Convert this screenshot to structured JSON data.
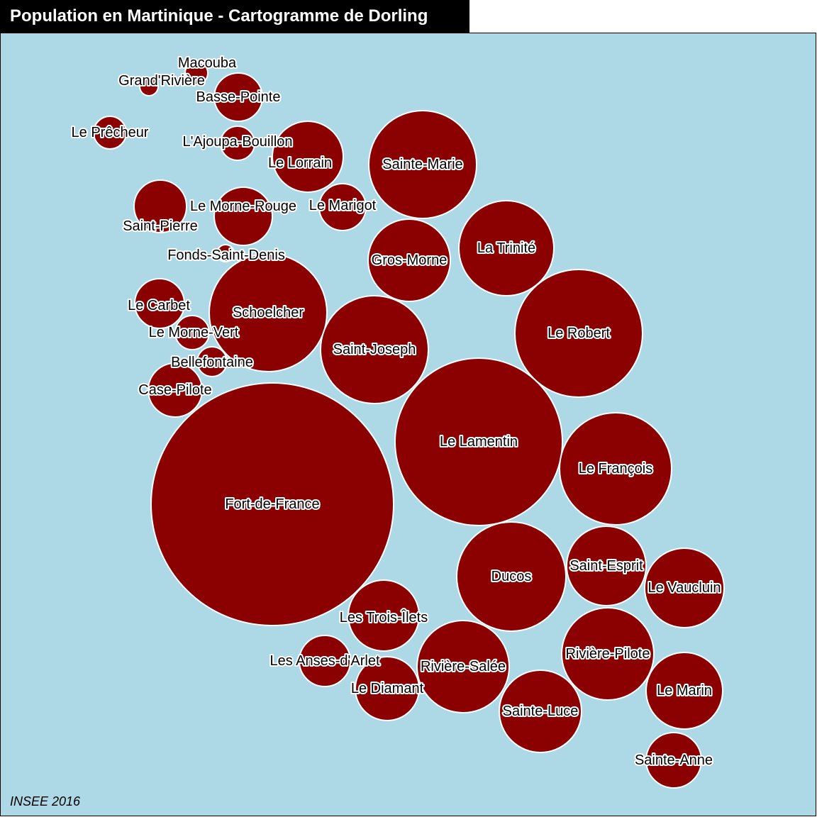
{
  "title": "Population en Martinique - Cartogramme de Dorling",
  "source": "INSEE 2016",
  "colors": {
    "sea": "#add8e6",
    "circle_fill": "#8b0000",
    "circle_stroke": "#ffffff",
    "title_bg": "#000000",
    "title_text": "#ffffff"
  },
  "communes": [
    {
      "name": "Fort-de-France"
    },
    {
      "name": "Le Lamentin"
    },
    {
      "name": "Le Robert"
    },
    {
      "name": "Schoelcher"
    },
    {
      "name": "Le François"
    },
    {
      "name": "Sainte-Marie"
    },
    {
      "name": "Saint-Joseph"
    },
    {
      "name": "Ducos"
    },
    {
      "name": "La Trinité"
    },
    {
      "name": "Rivière-Salée"
    },
    {
      "name": "Rivière-Pilote"
    },
    {
      "name": "Gros-Morne"
    },
    {
      "name": "Sainte-Luce"
    },
    {
      "name": "Saint-Esprit"
    },
    {
      "name": "Le Vaucluin"
    },
    {
      "name": "Le Marin"
    },
    {
      "name": "Les Trois-Îlets"
    },
    {
      "name": "Le Lorrain"
    },
    {
      "name": "Le Diamant"
    },
    {
      "name": "Le Morne-Rouge"
    },
    {
      "name": "Sainte-Anne"
    },
    {
      "name": "Case-Pilote"
    },
    {
      "name": "Saint-Pierre"
    },
    {
      "name": "Basse-Pointe"
    },
    {
      "name": "Le Carbet"
    },
    {
      "name": "Le Marigot"
    },
    {
      "name": "Les Anses-d'Arlet"
    },
    {
      "name": "Le Prêcheur"
    },
    {
      "name": "L'Ajoupa-Bouillon"
    },
    {
      "name": "Le Morne-Vert"
    },
    {
      "name": "Bellefontaine"
    },
    {
      "name": "Macouba"
    },
    {
      "name": "Grand'Rivière"
    },
    {
      "name": "Fonds-Saint-Denis"
    }
  ]
}
